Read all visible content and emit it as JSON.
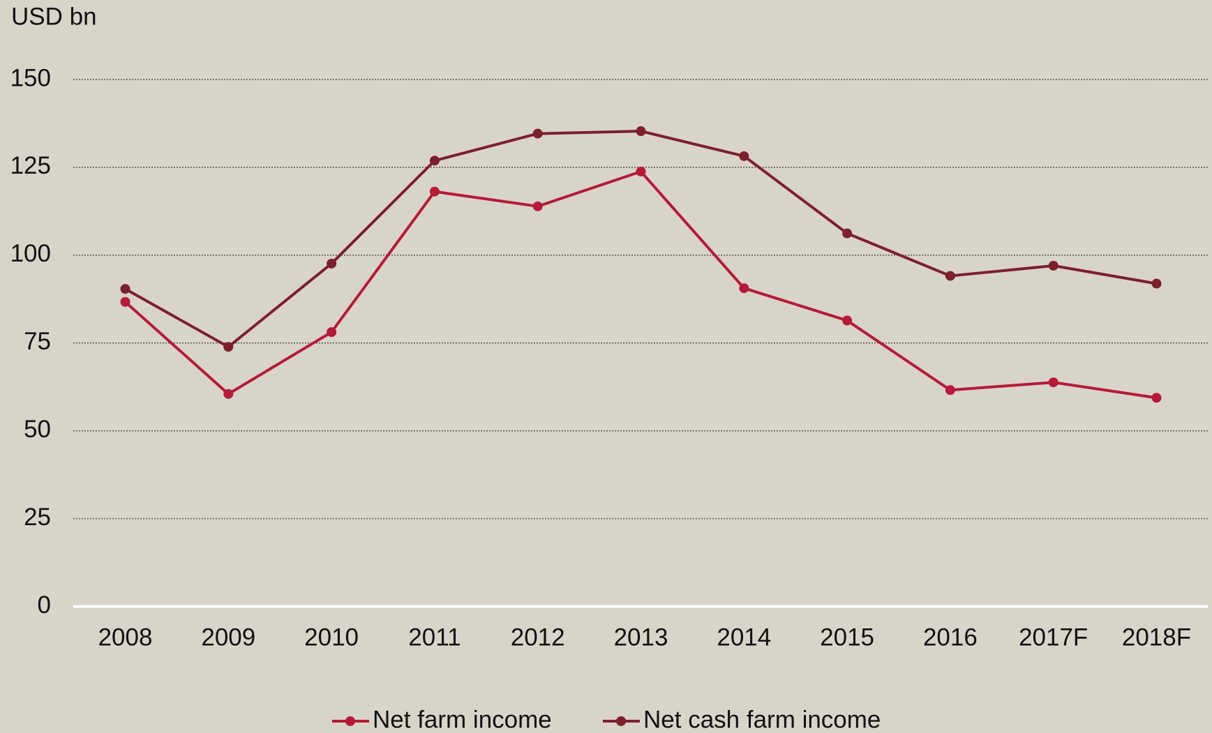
{
  "chart_data": {
    "type": "line",
    "y_axis_label": "USD bn",
    "categories": [
      "2008",
      "2009",
      "2010",
      "2011",
      "2012",
      "2013",
      "2014",
      "2015",
      "2016",
      "2017F",
      "2018F"
    ],
    "series": [
      {
        "name": "Net farm income",
        "color": "#b51a3a",
        "values": [
          86.7,
          60.5,
          78.1,
          118.1,
          113.9,
          123.8,
          90.6,
          81.4,
          61.6,
          63.8,
          59.4
        ]
      },
      {
        "name": "Net cash farm income",
        "color": "#7c1f2e",
        "values": [
          90.4,
          73.9,
          97.6,
          126.9,
          134.6,
          135.3,
          128.2,
          106.2,
          94.1,
          97.0,
          91.9
        ]
      }
    ],
    "ylim": [
      0,
      150
    ],
    "yticks": [
      0,
      25,
      50,
      75,
      100,
      125,
      150
    ],
    "grid": true,
    "legend": "bottom"
  }
}
